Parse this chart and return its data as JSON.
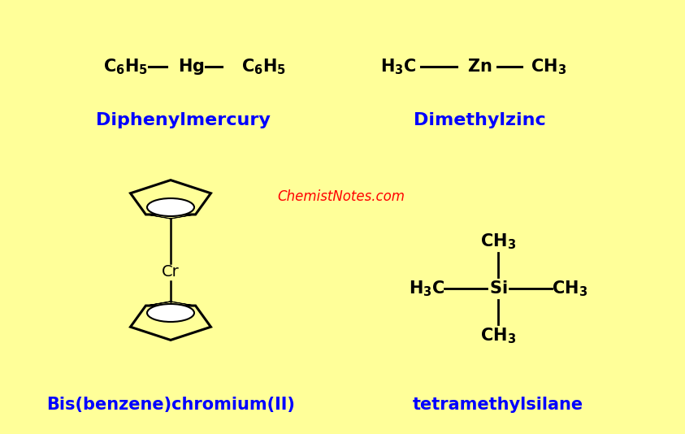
{
  "bg_color": "#FFFF99",
  "blue": "#0000FF",
  "black": "#000000",
  "red": "#FF0000",
  "white": "#FFFFFF",
  "watermark": "ChemistNotes.com",
  "diphenylmercury_name": "Diphenylmercury",
  "dimethylzinc_name": "Dimethylzinc",
  "bisbenzene_name": "Bis(benzene)chromium(II)",
  "tms_name": "tetramethylsilane"
}
